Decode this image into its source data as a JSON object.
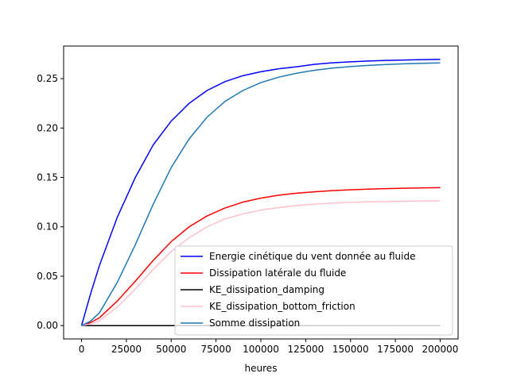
{
  "chart_data": {
    "type": "line",
    "title": "",
    "xlabel": "heures",
    "ylabel": "",
    "xlim": [
      -10000,
      210000
    ],
    "ylim": [
      -0.0135,
      0.283
    ],
    "xticks": [
      0,
      25000,
      50000,
      75000,
      100000,
      125000,
      150000,
      175000,
      200000
    ],
    "xtick_labels": [
      "0",
      "25000",
      "50000",
      "75000",
      "100000",
      "125000",
      "150000",
      "175000",
      "200000"
    ],
    "yticks": [
      0.0,
      0.05,
      0.1,
      0.15,
      0.2,
      0.25
    ],
    "ytick_labels": [
      "0.00",
      "0.05",
      "0.10",
      "0.15",
      "0.20",
      "0.25"
    ],
    "grid": false,
    "legend_position": "bottom-right",
    "x": [
      0,
      5000,
      10000,
      20000,
      30000,
      40000,
      50000,
      60000,
      70000,
      80000,
      90000,
      100000,
      110000,
      120000,
      130000,
      140000,
      150000,
      160000,
      170000,
      180000,
      190000,
      200000
    ],
    "series": [
      {
        "name": "Energie cinétique du vent donnée au fluide",
        "color": "#0000ff",
        "values": [
          0.0,
          0.032,
          0.061,
          0.11,
          0.15,
          0.183,
          0.207,
          0.225,
          0.238,
          0.247,
          0.253,
          0.257,
          0.26,
          0.262,
          0.2645,
          0.266,
          0.267,
          0.2678,
          0.2684,
          0.2688,
          0.2692,
          0.2695
        ]
      },
      {
        "name": "Dissipation latérale du fluide",
        "color": "#ff0000",
        "values": [
          0.0,
          0.003,
          0.008,
          0.025,
          0.045,
          0.066,
          0.085,
          0.1,
          0.111,
          0.119,
          0.125,
          0.129,
          0.132,
          0.134,
          0.1355,
          0.1367,
          0.1375,
          0.1382,
          0.1387,
          0.1391,
          0.1394,
          0.1397
        ]
      },
      {
        "name": "KE_dissipation_damping",
        "color": "#000000",
        "values": [
          0,
          0,
          0,
          0,
          0,
          0,
          0,
          0,
          0,
          0,
          0,
          0,
          0,
          0,
          0,
          0,
          0,
          0,
          0,
          0,
          0,
          0
        ]
      },
      {
        "name": "KE_dissipation_bottom_friction",
        "color": "#ffc0cb",
        "values": [
          0.0,
          0.0015,
          0.005,
          0.019,
          0.037,
          0.057,
          0.075,
          0.089,
          0.1,
          0.108,
          0.113,
          0.117,
          0.1195,
          0.1215,
          0.123,
          0.124,
          0.1247,
          0.1252,
          0.1256,
          0.1259,
          0.1261,
          0.1262
        ]
      },
      {
        "name": "Somme dissipation",
        "color": "#1f77b4",
        "values": [
          0.0,
          0.0045,
          0.013,
          0.044,
          0.082,
          0.123,
          0.16,
          0.189,
          0.211,
          0.227,
          0.238,
          0.246,
          0.2515,
          0.2555,
          0.2585,
          0.2607,
          0.2622,
          0.2634,
          0.2643,
          0.265,
          0.2655,
          0.2659
        ]
      }
    ]
  }
}
